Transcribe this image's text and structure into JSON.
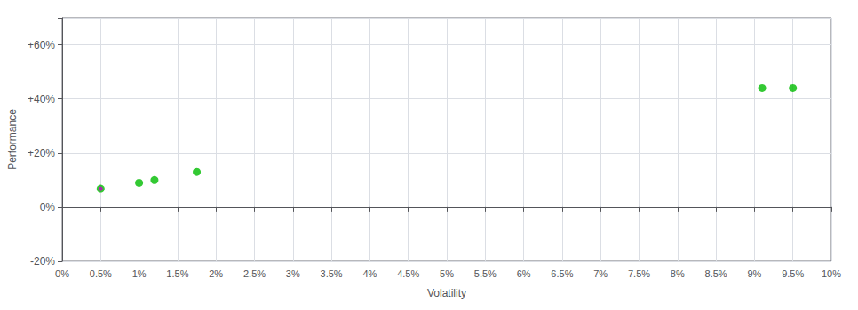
{
  "chart_data": {
    "type": "scatter",
    "xlabel": "Volatility",
    "ylabel": "Performance",
    "x": [
      0.005,
      0.005,
      0.01,
      0.012,
      0.0175,
      0.091,
      0.095
    ],
    "values": [
      0.068,
      0.068,
      0.09,
      0.1,
      0.13,
      0.44,
      0.44
    ],
    "colors": [
      "#00bb00",
      "#cc00cc",
      "#00bb00",
      "#00bb00",
      "#00bb00",
      "#00bb00",
      "#00bb00"
    ],
    "xlim": [
      0,
      0.1
    ],
    "ylim": [
      -0.2,
      0.7
    ],
    "xticks": [
      {
        "value": 0,
        "label": "0%"
      },
      {
        "value": 0.005,
        "label": "0.5%"
      },
      {
        "value": 0.01,
        "label": "1%"
      },
      {
        "value": 0.015,
        "label": "1.5%"
      },
      {
        "value": 0.02,
        "label": "2%"
      },
      {
        "value": 0.025,
        "label": "2.5%"
      },
      {
        "value": 0.03,
        "label": "3%"
      },
      {
        "value": 0.035,
        "label": "3.5%"
      },
      {
        "value": 0.04,
        "label": "4%"
      },
      {
        "value": 0.045,
        "label": "4.5%"
      },
      {
        "value": 0.05,
        "label": "5%"
      },
      {
        "value": 0.055,
        "label": "5.5%"
      },
      {
        "value": 0.06,
        "label": "6%"
      },
      {
        "value": 0.065,
        "label": "6.5%"
      },
      {
        "value": 0.07,
        "label": "7%"
      },
      {
        "value": 0.075,
        "label": "7.5%"
      },
      {
        "value": 0.08,
        "label": "8%"
      },
      {
        "value": 0.085,
        "label": "8.5%"
      },
      {
        "value": 0.09,
        "label": "9%"
      },
      {
        "value": 0.095,
        "label": "9.5%"
      },
      {
        "value": 0.1,
        "label": "10%"
      }
    ],
    "yticks": [
      {
        "value": -0.2,
        "label": "-20%"
      },
      {
        "value": 0.0,
        "label": "0%"
      },
      {
        "value": 0.2,
        "label": "+20%"
      },
      {
        "value": 0.4,
        "label": "+40%"
      },
      {
        "value": 0.6,
        "label": "+60%"
      }
    ],
    "grid": true
  }
}
